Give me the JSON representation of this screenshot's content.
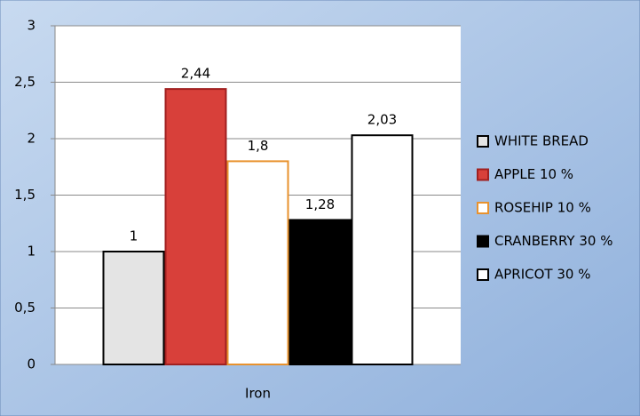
{
  "chart_data": {
    "type": "bar",
    "categories": [
      "Iron"
    ],
    "series": [
      {
        "name": "WHITE BREAD",
        "color": "#e4e4e4",
        "edge_color": "#000000",
        "values": [
          1
        ]
      },
      {
        "name": "APPLE 10 %",
        "color": "#d8403a",
        "edge_color": "#a02020",
        "values": [
          2.44
        ],
        "value_labels": [
          "2,44"
        ]
      },
      {
        "name": "ROSEHIP 10 %",
        "color": "#ffffff",
        "edge_color": "#e8922e",
        "values": [
          1.8
        ],
        "value_labels": [
          "1,8"
        ]
      },
      {
        "name": "CRANBERRY 30 %",
        "color": "#000000",
        "edge_color": "#000000",
        "values": [
          1.28
        ],
        "value_labels": [
          "1,28"
        ]
      },
      {
        "name": "APRICOT 30 %",
        "color": "#ffffff",
        "edge_color": "#000000",
        "values": [
          2.03
        ],
        "value_labels": [
          "2,03"
        ]
      }
    ],
    "ylim": [
      0,
      3
    ],
    "yticks": [
      0,
      {
        "value": 0.5,
        "label": "0,5"
      },
      1,
      {
        "value": 1.5,
        "label": "1,5"
      },
      2,
      {
        "value": 2.5,
        "label": "2,5"
      },
      3
    ],
    "grid": true,
    "legend": "right"
  }
}
